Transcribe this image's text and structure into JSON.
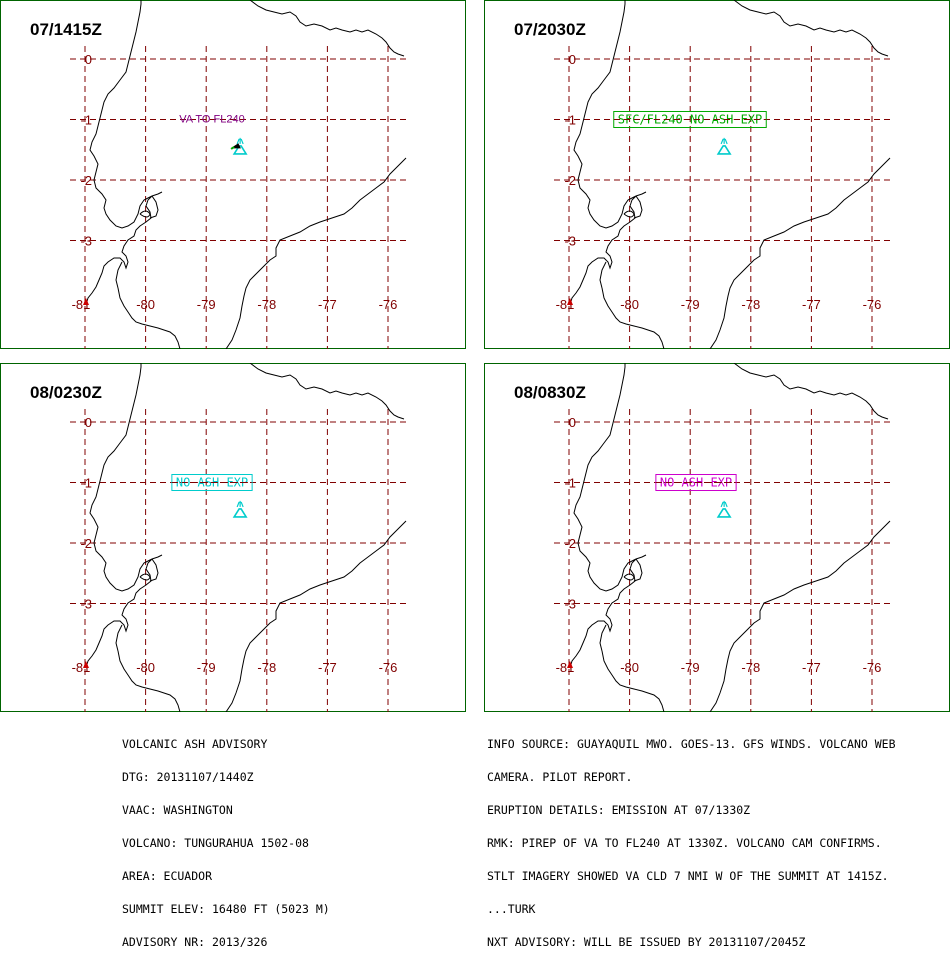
{
  "colors": {
    "frame": "#006400",
    "grid": "#800000",
    "coast": "#000000",
    "volcano": "#00cccc",
    "label_purple": "#800080",
    "label_green": "#00aa00",
    "label_cyan": "#00cccc",
    "label_magenta": "#cc00cc"
  },
  "axes": {
    "lon_ticks": [
      "-81",
      "-80",
      "-79",
      "-78",
      "-77",
      "-76"
    ],
    "lat_ticks": [
      "0",
      "-1",
      "-2",
      "-3"
    ],
    "lon_range": [
      -81,
      -76
    ],
    "lat_range": [
      -4,
      0.5
    ]
  },
  "volcano": {
    "name": "TUNGURAHUA",
    "lon": -78.44,
    "lat": -1.47,
    "icon": "volcano-icon"
  },
  "panels": [
    {
      "id": "p1",
      "time_label": "07/1415Z",
      "label": "VA TO FL240",
      "label_style": "plain",
      "label_color": "#800080",
      "ash_pointer": true
    },
    {
      "id": "p2",
      "time_label": "07/2030Z",
      "label": "SFC/FL240 NO ASH EXP",
      "label_style": "box",
      "label_color": "#00aa00",
      "ash_pointer": false
    },
    {
      "id": "p3",
      "time_label": "08/0230Z",
      "label": "NO ASH EXP",
      "label_style": "box",
      "label_color": "#00cccc",
      "ash_pointer": false
    },
    {
      "id": "p4",
      "time_label": "08/0830Z",
      "label": "NO ASH EXP",
      "label_style": "box",
      "label_color": "#cc00cc",
      "ash_pointer": false
    }
  ],
  "advisory_left": [
    "VOLCANIC ASH ADVISORY",
    "DTG: 20131107/1440Z",
    "VAAC: WASHINGTON",
    "VOLCANO: TUNGURAHUA 1502-08",
    "AREA: ECUADOR",
    "SUMMIT ELEV: 16480 FT (5023 M)",
    "ADVISORY NR: 2013/326"
  ],
  "advisory_right": [
    "INFO SOURCE: GUAYAQUIL MWO. GOES-13. GFS WINDS. VOLCANO WEB",
    "CAMERA. PILOT REPORT.",
    "ERUPTION DETAILS: EMISSION AT 07/1330Z",
    "RMK: PIREP OF VA TO FL240 AT 1330Z. VOLCANO CAM CONFIRMS.",
    "STLT IMAGERY SHOWED VA CLD 7 NMI W OF THE SUMMIT AT 1415Z.",
    "...TURK",
    "NXT ADVISORY: WILL BE ISSUED BY 20131107/2045Z"
  ]
}
